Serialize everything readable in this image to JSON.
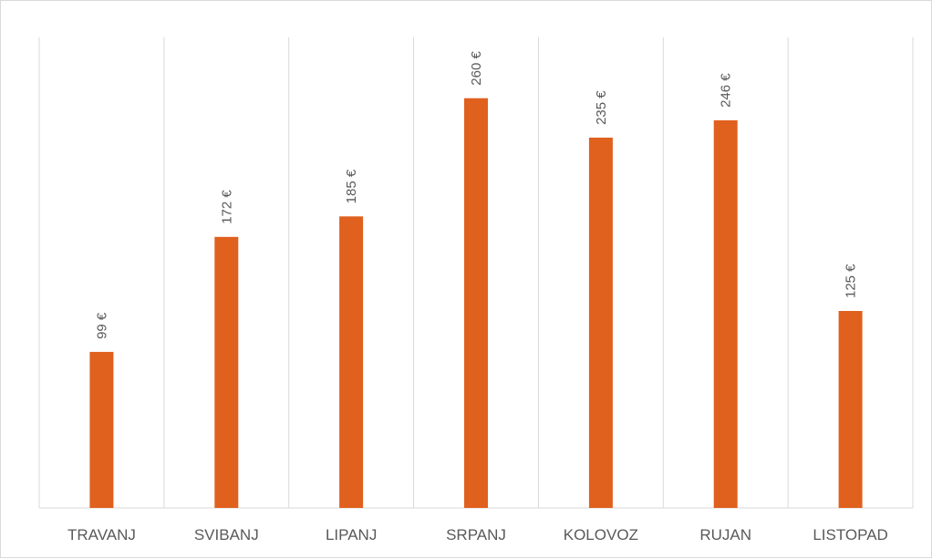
{
  "chart_data": {
    "type": "bar",
    "categories": [
      "TRAVANJ",
      "SVIBANJ",
      "LIPANJ",
      "SRPANJ",
      "KOLOVOZ",
      "RUJAN",
      "LISTOPAD"
    ],
    "values": [
      99,
      172,
      185,
      260,
      235,
      246,
      125
    ],
    "value_labels": [
      "99 €",
      "172 €",
      "185 €",
      "260 €",
      "235 €",
      "246 €",
      "125 €"
    ],
    "unit": "€",
    "title": "",
    "xlabel": "",
    "ylabel": "",
    "ylim": [
      0,
      300
    ],
    "grid": "vertical-category-separators",
    "legend": "none",
    "bar_color": "#E0601E",
    "grid_color": "#d9d9d9",
    "label_color": "#595959"
  }
}
